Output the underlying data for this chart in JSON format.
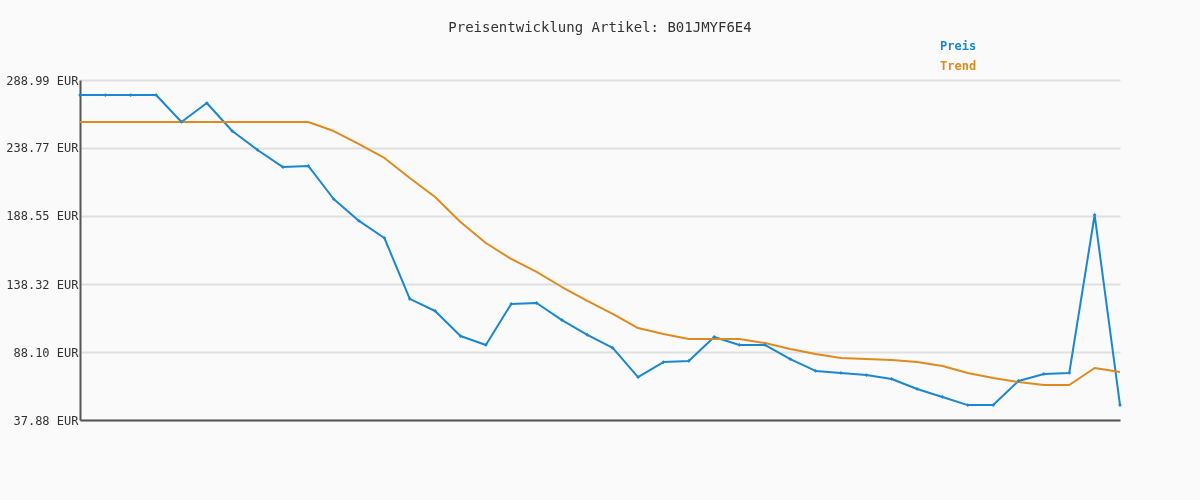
{
  "chart_data": {
    "type": "line",
    "title": "Preisentwicklung Artikel: B01JMYF6E4",
    "categories": [
      null,
      null,
      null,
      null,
      null,
      null,
      null,
      null,
      null,
      null,
      null,
      null,
      null,
      null,
      null,
      null,
      null,
      null,
      null,
      null,
      null,
      null,
      null,
      null,
      null,
      null,
      null,
      null,
      null,
      null,
      null,
      null,
      null,
      null,
      null,
      null,
      null,
      null,
      null,
      null,
      null,
      null
    ],
    "series": [
      {
        "name": "Preis",
        "color": "#1a87d4",
        "marker": "diamond",
        "values": [
          277.9,
          277.9,
          277.9,
          277.9,
          258.0,
          272.0,
          251.3,
          237.3,
          224.7,
          225.5,
          201.1,
          184.9,
          172.3,
          127.3,
          118.4,
          99.9,
          93.3,
          123.6,
          124.3,
          111.7,
          100.7,
          91.1,
          69.6,
          80.7,
          81.5,
          99.2,
          93.3,
          93.3,
          82.9,
          74.1,
          72.6,
          71.1,
          68.2,
          60.8,
          54.9,
          48.9,
          48.9,
          66.7,
          71.9,
          72.6,
          189.3,
          48.9
        ]
      },
      {
        "name": "Trend",
        "color": "#e08a1e",
        "marker": "none",
        "values": [
          258.0,
          258.0,
          258.0,
          258.0,
          258.0,
          258.0,
          258.0,
          258.0,
          258.0,
          258.0,
          251.3,
          241.7,
          231.4,
          216.6,
          202.6,
          184.1,
          168.6,
          156.8,
          147.2,
          136.1,
          125.8,
          116.2,
          105.8,
          101.4,
          97.7,
          97.7,
          97.7,
          94.7,
          90.3,
          86.6,
          83.7,
          82.9,
          82.2,
          80.7,
          77.8,
          72.6,
          68.9,
          65.9,
          63.7,
          63.7,
          76.3,
          73.3
        ]
      }
    ],
    "ylim": [
      37.88,
      288.99
    ],
    "yticks": [
      {
        "value": 37.88,
        "label": "37.88 EUR"
      },
      {
        "value": 88.1,
        "label": "88.10 EUR"
      },
      {
        "value": 138.32,
        "label": "138.32 EUR"
      },
      {
        "value": 188.55,
        "label": "188.55 EUR"
      },
      {
        "value": 238.77,
        "label": "238.77 EUR"
      },
      {
        "value": 288.99,
        "label": "288.99 EUR"
      }
    ],
    "grid": "y",
    "tick_labels": "y"
  }
}
